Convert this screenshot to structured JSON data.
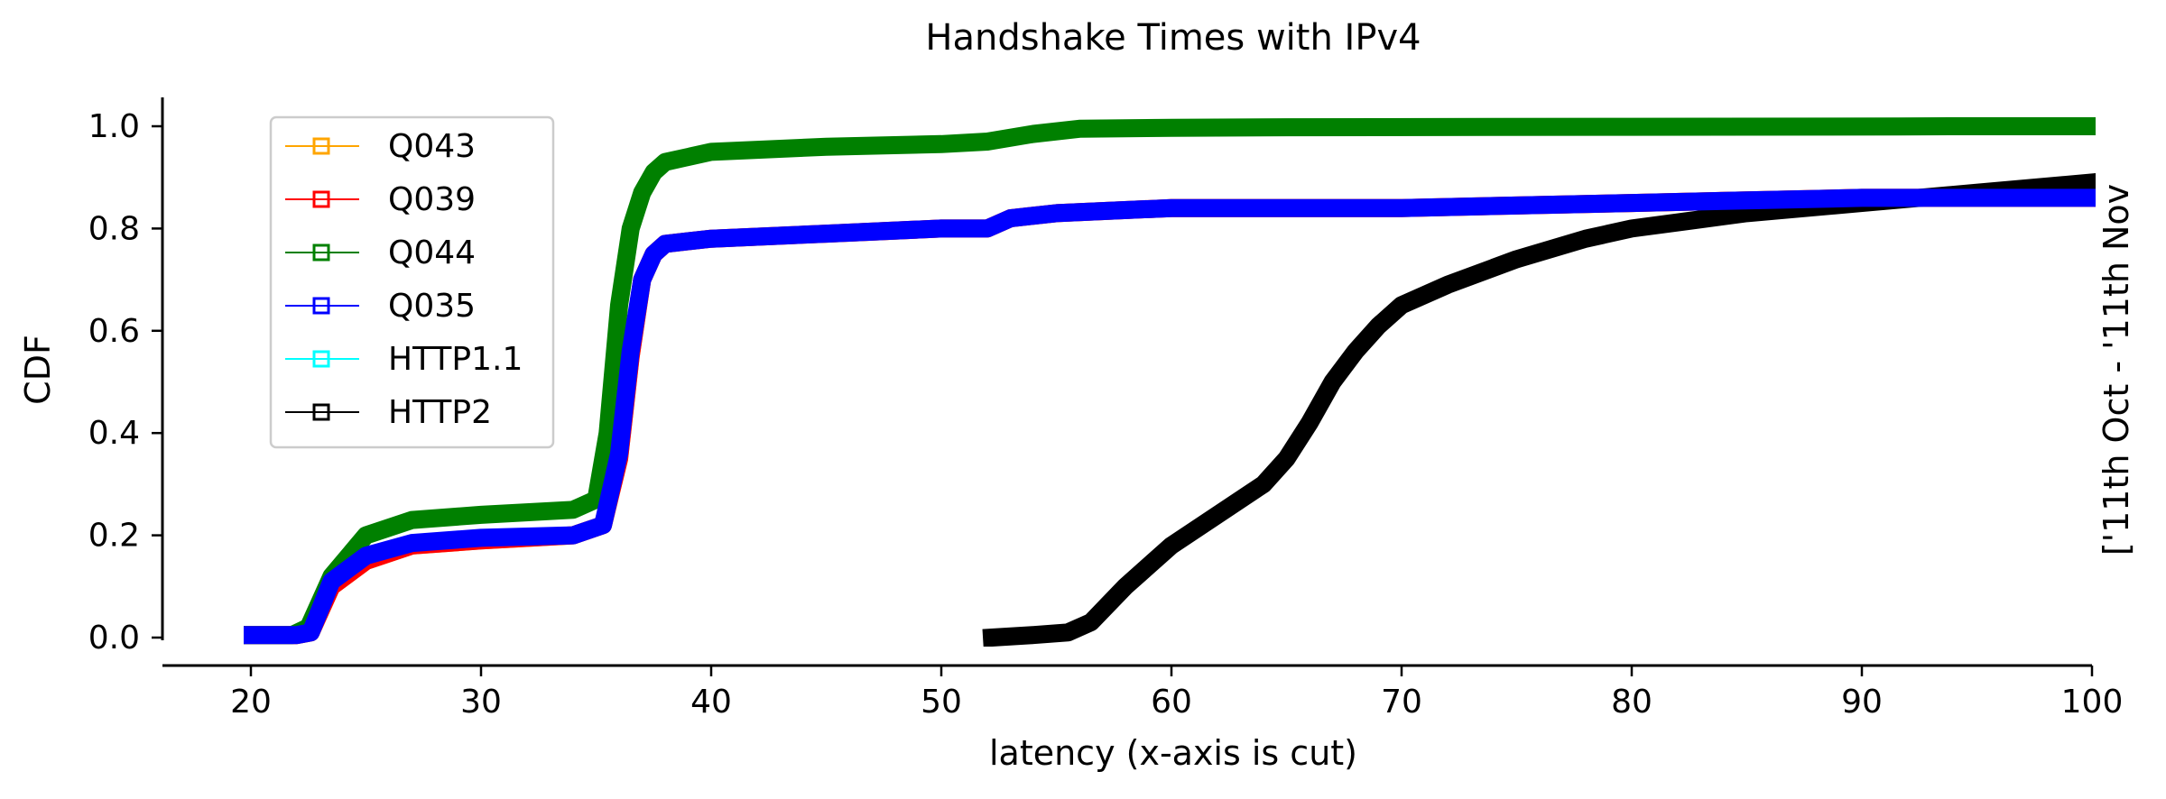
{
  "chart_data": {
    "type": "line",
    "title": "Handshake Times with IPv4",
    "xlabel": "latency (x-axis is cut)",
    "ylabel": "CDF",
    "side_label": "['11th Oct - '11th Nov",
    "xlim": [
      20,
      100
    ],
    "ylim": [
      0.0,
      1.0
    ],
    "xticks": [
      20,
      30,
      40,
      50,
      60,
      70,
      80,
      90,
      100
    ],
    "yticks": [
      0.0,
      0.2,
      0.4,
      0.6,
      0.8,
      1.0
    ],
    "ytick_labels": [
      "0.0",
      "0.2",
      "0.4",
      "0.6",
      "0.8",
      "1.0"
    ],
    "grid": false,
    "legend_position": "upper-left",
    "marker": "hollow-square",
    "series": [
      {
        "name": "Q043",
        "color": "#ffa500",
        "x": [
          20,
          22,
          22.6,
          23.5,
          25,
          27,
          30,
          34,
          35.3,
          36,
          36.5,
          37,
          37.5,
          38,
          40,
          45,
          50,
          52,
          53,
          55,
          60,
          70,
          80,
          90,
          100
        ],
        "y": [
          0.005,
          0.005,
          0.01,
          0.1,
          0.15,
          0.18,
          0.19,
          0.2,
          0.22,
          0.35,
          0.55,
          0.7,
          0.75,
          0.77,
          0.78,
          0.79,
          0.8,
          0.8,
          0.82,
          0.83,
          0.84,
          0.84,
          0.85,
          0.86,
          0.86
        ]
      },
      {
        "name": "Q039",
        "color": "#ff0000",
        "x": [
          20,
          22,
          22.6,
          23.5,
          25,
          27,
          30,
          34,
          35.3,
          36,
          36.5,
          37,
          37.5,
          38,
          40,
          45,
          50,
          52,
          53,
          55,
          60,
          70,
          80,
          90,
          100
        ],
        "y": [
          0.005,
          0.005,
          0.01,
          0.1,
          0.15,
          0.18,
          0.19,
          0.2,
          0.22,
          0.35,
          0.55,
          0.7,
          0.75,
          0.77,
          0.78,
          0.79,
          0.8,
          0.8,
          0.82,
          0.83,
          0.84,
          0.84,
          0.85,
          0.86,
          0.86
        ]
      },
      {
        "name": "Q044",
        "color": "#008000",
        "x": [
          20,
          21.8,
          22.5,
          23.5,
          25,
          27,
          30,
          34,
          35,
          35.5,
          36,
          36.5,
          37,
          37.5,
          38,
          40,
          45,
          50,
          52,
          54,
          56,
          60,
          65,
          80,
          91.6,
          94.1,
          100
        ],
        "y": [
          0.005,
          0.005,
          0.02,
          0.12,
          0.2,
          0.23,
          0.24,
          0.25,
          0.27,
          0.4,
          0.65,
          0.8,
          0.87,
          0.91,
          0.93,
          0.95,
          0.96,
          0.965,
          0.97,
          0.985,
          0.995,
          0.997,
          0.998,
          0.999,
          0.9995,
          1.0,
          1.0
        ]
      },
      {
        "name": "Q035",
        "color": "#0000ff",
        "x": [
          20,
          22,
          22.6,
          23.5,
          25,
          27,
          30,
          34,
          35.3,
          36,
          36.5,
          37,
          37.5,
          38,
          40,
          45,
          50,
          52,
          53,
          55,
          60,
          70,
          80,
          90,
          100
        ],
        "y": [
          0.005,
          0.005,
          0.01,
          0.11,
          0.16,
          0.185,
          0.195,
          0.2,
          0.22,
          0.36,
          0.56,
          0.7,
          0.75,
          0.77,
          0.78,
          0.79,
          0.8,
          0.8,
          0.82,
          0.83,
          0.84,
          0.84,
          0.85,
          0.86,
          0.86
        ]
      },
      {
        "name": "HTTP1.1",
        "color": "#00ffff",
        "x": [],
        "y": []
      },
      {
        "name": "HTTP2",
        "color": "#000000",
        "x": [
          52.2,
          54,
          55.5,
          56.5,
          58,
          60,
          62,
          64,
          65,
          66,
          67,
          68,
          69,
          70,
          72,
          75,
          78,
          80,
          85,
          90,
          95,
          100
        ],
        "y": [
          0.0,
          0.005,
          0.01,
          0.03,
          0.1,
          0.18,
          0.24,
          0.3,
          0.35,
          0.42,
          0.5,
          0.56,
          0.61,
          0.65,
          0.69,
          0.74,
          0.78,
          0.8,
          0.83,
          0.85,
          0.87,
          0.89
        ]
      }
    ]
  }
}
